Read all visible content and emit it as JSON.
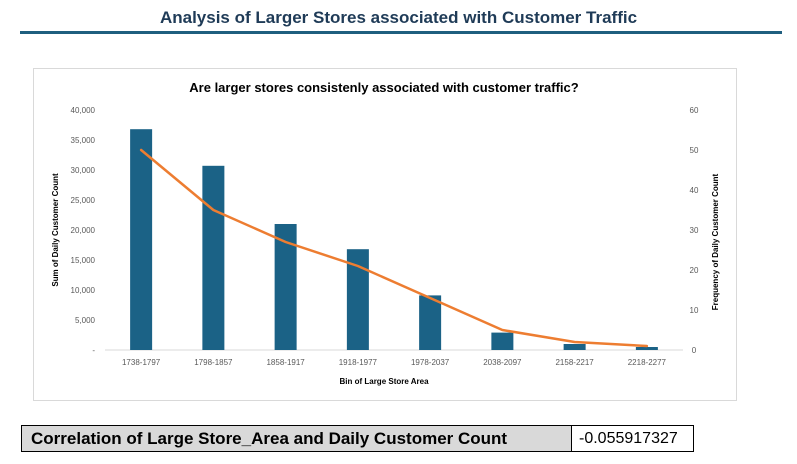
{
  "page": {
    "title": "Analysis of Larger Stores associated with Customer Traffic"
  },
  "colors": {
    "bar": "#1b6286",
    "line": "#ed7d31",
    "title": "#1f3b57",
    "rule": "#1f5f7f"
  },
  "chart_data": {
    "type": "bar",
    "title": "Are larger stores consistenly associated with customer traffic?",
    "xlabel": "Bin of Large Store Area",
    "ylabel": "Sum of Daily Customer Count",
    "y2label": "Frequency of Daily Customer Count",
    "categories": [
      "1738-1797",
      "1798-1857",
      "1858-1917",
      "1918-1977",
      "1978-2037",
      "2038-2097",
      "2158-2217",
      "2218-2277"
    ],
    "ylim": [
      0,
      40000
    ],
    "y2lim": [
      0,
      60
    ],
    "yticks": [
      "-",
      "5,000",
      "10,000",
      "15,000",
      "20,000",
      "25,000",
      "30,000",
      "35,000",
      "40,000"
    ],
    "y2ticks": [
      "0",
      "10",
      "20",
      "30",
      "40",
      "50",
      "60"
    ],
    "grid": false,
    "legend": "none",
    "series": [
      {
        "type": "bar",
        "axis": "left",
        "values": [
          36800,
          30700,
          21000,
          16800,
          9100,
          2900,
          1000,
          500
        ]
      },
      {
        "type": "line",
        "axis": "right",
        "values": [
          50,
          35,
          27,
          21,
          13,
          5,
          2,
          1
        ]
      }
    ]
  },
  "correlation": {
    "label": "Correlation of Large Store_Area and Daily Customer Count",
    "value": "-0.055917327"
  }
}
